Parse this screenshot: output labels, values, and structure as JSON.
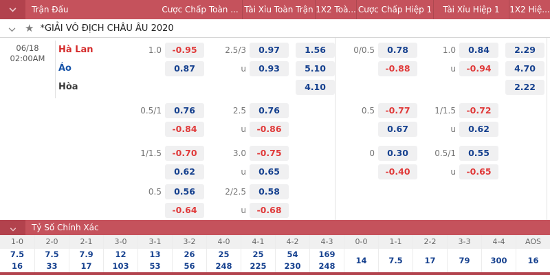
{
  "header": {
    "columns": [
      "Trận Đấu",
      "Cược Chấp Toàn ...",
      "Tài Xỉu Toàn Trận",
      "1X2 Toà...",
      "Cược Chấp Hiệp 1",
      "Tài Xỉu Hiệp 1",
      "1X2 Hiệ..."
    ]
  },
  "league": {
    "name": "*GIẢI VÔ ĐỊCH CHÂU ÂU 2020"
  },
  "icons": {
    "star": "★"
  },
  "labels": {
    "under": "u"
  },
  "match": {
    "date": "06/18",
    "time": "02:00AM",
    "teams": [
      {
        "name": "Hà Lan",
        "color": "red"
      },
      {
        "name": "Áo",
        "color": "blue"
      },
      {
        "name": "Hòa",
        "color": "dark"
      }
    ],
    "groups": [
      {
        "ft": {
          "hdp_line": "1.0",
          "hdp": [
            "-0.95",
            "0.87"
          ],
          "ou_line": "2.5/3",
          "ou": [
            "0.97",
            "0.93"
          ],
          "x12": [
            "1.56",
            "5.10",
            "4.10"
          ]
        },
        "h1": {
          "hdp_line": "0/0.5",
          "hdp": [
            "0.78",
            "-0.88"
          ],
          "ou_line": "1.0",
          "ou": [
            "0.84",
            "-0.94"
          ],
          "x12": [
            "2.29",
            "4.70",
            "2.22"
          ]
        }
      },
      {
        "ft": {
          "hdp_line": "0.5/1",
          "hdp": [
            "0.76",
            "-0.84"
          ],
          "ou_line": "2.5",
          "ou": [
            "0.76",
            "-0.86"
          ]
        },
        "h1": {
          "hdp_line": "0.5",
          "hdp": [
            "-0.77",
            "0.67"
          ],
          "ou_line": "1/1.5",
          "ou": [
            "-0.72",
            "0.62"
          ]
        }
      },
      {
        "ft": {
          "hdp_line": "1/1.5",
          "hdp": [
            "-0.70",
            "0.62"
          ],
          "ou_line": "3.0",
          "ou": [
            "-0.75",
            "0.65"
          ]
        },
        "h1": {
          "hdp_line": "0",
          "hdp": [
            "0.30",
            "-0.40"
          ],
          "ou_line": "0.5/1",
          "ou": [
            "0.55",
            "-0.65"
          ]
        }
      },
      {
        "ft": {
          "hdp_line": "0.5",
          "hdp": [
            "0.56",
            "-0.64"
          ],
          "ou_line": "2/2.5",
          "ou": [
            "0.58",
            "-0.68"
          ]
        }
      }
    ]
  },
  "correct_score": {
    "title": "Tỷ Số Chính Xác",
    "columns": [
      {
        "score": "1-0",
        "odds": [
          "7.5",
          "16"
        ]
      },
      {
        "score": "2-0",
        "odds": [
          "7.5",
          "33"
        ]
      },
      {
        "score": "2-1",
        "odds": [
          "7.9",
          "17"
        ]
      },
      {
        "score": "3-0",
        "odds": [
          "12",
          "103"
        ]
      },
      {
        "score": "3-1",
        "odds": [
          "13",
          "53"
        ]
      },
      {
        "score": "3-2",
        "odds": [
          "26",
          "56"
        ]
      },
      {
        "score": "4-0",
        "odds": [
          "25",
          "248"
        ]
      },
      {
        "score": "4-1",
        "odds": [
          "25",
          "225"
        ]
      },
      {
        "score": "4-2",
        "odds": [
          "54",
          "230"
        ]
      },
      {
        "score": "4-3",
        "odds": [
          "169",
          "248"
        ]
      },
      {
        "score": "0-0",
        "odds": [
          "14"
        ]
      },
      {
        "score": "1-1",
        "odds": [
          "7.5"
        ]
      },
      {
        "score": "2-2",
        "odds": [
          "17"
        ]
      },
      {
        "score": "3-3",
        "odds": [
          "79"
        ]
      },
      {
        "score": "4-4",
        "odds": [
          "300"
        ]
      },
      {
        "score": "AOS",
        "odds": [
          "16"
        ]
      }
    ]
  },
  "colors": {
    "header_bg": "#c5525c",
    "header_accent": "#b2424d",
    "odds_positive": "#16418f",
    "odds_negative": "#e03a3a",
    "home_team": "#d52b2b",
    "away_team": "#1653a8",
    "draw_team": "#3a3a3a",
    "cell_bg": "#f0f0f1"
  }
}
